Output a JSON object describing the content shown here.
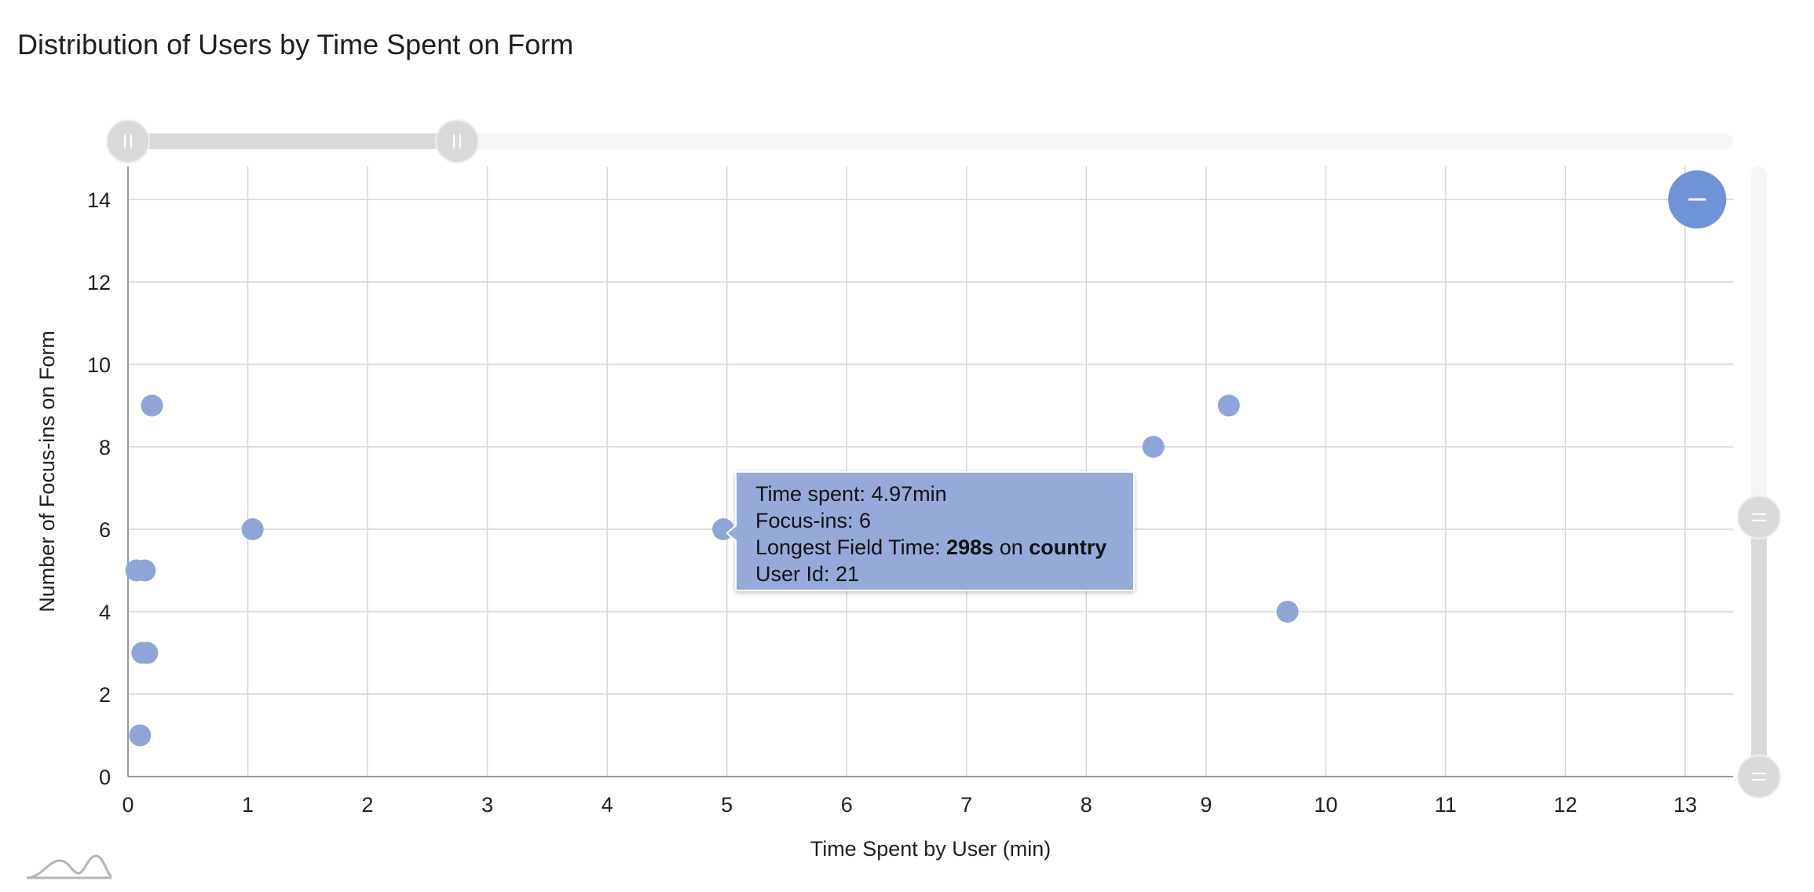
{
  "title": "Distribution of Users by Time Spent on Form",
  "colors": {
    "point": "#8ea5d8",
    "bubble": "#6f92d8",
    "tooltip_bg": "#95aad8",
    "grid": "#d4d4d4",
    "scrollbar_track": "#f6f6f6",
    "scrollbar_thumb": "#d9d9d9"
  },
  "chart_data": {
    "type": "scatter",
    "xlabel": "Time Spent by User (min)",
    "ylabel": "Number of Focus-ins on Form",
    "xlim": [
      0,
      13.4
    ],
    "ylim": [
      0,
      14.8
    ],
    "x_ticks": [
      0,
      1,
      2,
      3,
      4,
      5,
      6,
      7,
      8,
      9,
      10,
      11,
      12,
      13
    ],
    "y_ticks": [
      0,
      2,
      4,
      6,
      8,
      10,
      12,
      14
    ],
    "grid": true,
    "points": [
      {
        "x": 0.07,
        "y": 5
      },
      {
        "x": 0.14,
        "y": 5
      },
      {
        "x": 0.12,
        "y": 3
      },
      {
        "x": 0.16,
        "y": 3
      },
      {
        "x": 0.1,
        "y": 1
      },
      {
        "x": 0.2,
        "y": 9
      },
      {
        "x": 1.04,
        "y": 6
      },
      {
        "x": 4.97,
        "y": 6
      },
      {
        "x": 7.93,
        "y": 5
      },
      {
        "x": 8.56,
        "y": 8
      },
      {
        "x": 9.19,
        "y": 9
      },
      {
        "x": 9.68,
        "y": 4
      }
    ],
    "highlight_bubble": {
      "x": 13.1,
      "y": 14
    }
  },
  "tooltip": {
    "line1_label": "Time spent: ",
    "line1_value": "4.97min",
    "line2_label": "Focus-ins: ",
    "line2_value": "6",
    "line3_label": "Longest Field Time: ",
    "line3_duration": "298s",
    "line3_mid": " on ",
    "line3_field": "country",
    "line4_label": "User Id: ",
    "line4_value": "21"
  },
  "scrollbars": {
    "x_range": [
      0.0,
      0.205
    ],
    "y_range": [
      0.0,
      0.425
    ]
  },
  "icons": {
    "zoom_out": "minus-icon",
    "grip": "grip-icon",
    "logo": "amcharts-logo-icon"
  }
}
